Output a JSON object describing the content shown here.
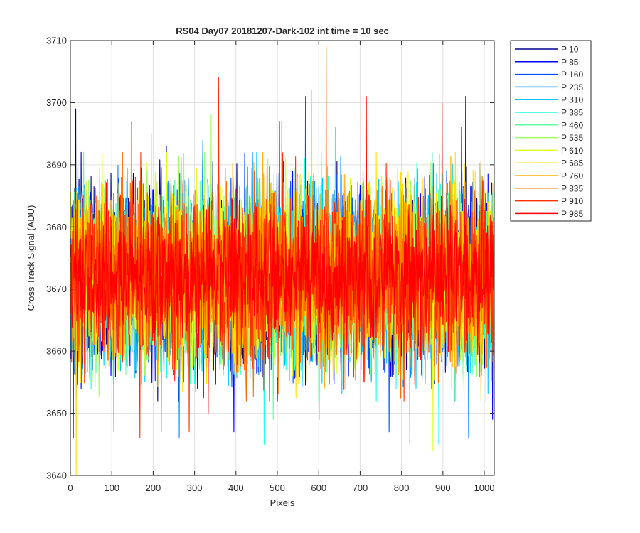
{
  "chart_data": {
    "type": "line",
    "title": "RS04 Day07 20181207-Dark-102 int time = 10 sec",
    "xlabel": "Pixels",
    "ylabel": "Cross Track Signal (ADU)",
    "xlim": [
      0,
      1024
    ],
    "ylim": [
      3640,
      3710
    ],
    "x_ticks": [
      "0",
      "100",
      "200",
      "300",
      "400",
      "500",
      "600",
      "700",
      "800",
      "900",
      "1000"
    ],
    "y_ticks": [
      "3640",
      "3650",
      "3660",
      "3670",
      "3680",
      "3690",
      "3700",
      "3710"
    ],
    "grid": true,
    "legend_position": "outside right, top",
    "x": "pixel index 1–1024 (one sample per pixel)",
    "series": [
      {
        "name": "P 10",
        "color": "#00008F",
        "seed": 10,
        "mean": 3672.0,
        "sd": 7.2,
        "peaks": [
          [
            13,
            3699
          ],
          [
            232,
            3693
          ],
          [
            955,
            3701
          ]
        ],
        "troughs": [
          [
            7,
            3646
          ]
        ]
      },
      {
        "name": "P 85",
        "color": "#0000FF",
        "seed": 85,
        "mean": 3672.0,
        "sd": 7.0,
        "peaks": [
          [
            505,
            3697
          ],
          [
            945,
            3696
          ]
        ],
        "troughs": [
          [
            395,
            3647
          ],
          [
            1020,
            3649
          ]
        ]
      },
      {
        "name": "P 160",
        "color": "#0050FF",
        "seed": 160,
        "mean": 3672.0,
        "sd": 7.0,
        "peaks": [
          [
            568,
            3701
          ]
        ],
        "troughs": [
          [
            770,
            3647
          ]
        ]
      },
      {
        "name": "P 235",
        "color": "#0090FF",
        "seed": 235,
        "mean": 3672.0,
        "sd": 7.0,
        "peaks": [
          [
            320,
            3694
          ]
        ],
        "troughs": [
          [
            263,
            3646
          ],
          [
            962,
            3646
          ]
        ]
      },
      {
        "name": "P 310",
        "color": "#00C8FF",
        "seed": 310,
        "mean": 3672.0,
        "sd": 7.0,
        "peaks": [
          [
            450,
            3692
          ]
        ],
        "troughs": [
          [
            820,
            3645
          ]
        ]
      },
      {
        "name": "P 385",
        "color": "#20FFE0",
        "seed": 385,
        "mean": 3672.0,
        "sd": 7.0,
        "peaks": [
          [
            640,
            3696
          ]
        ],
        "troughs": [
          [
            468,
            3645
          ],
          [
            890,
            3645
          ]
        ]
      },
      {
        "name": "P 460",
        "color": "#60FFA0",
        "seed": 460,
        "mean": 3672.0,
        "sd": 7.0,
        "peaks": [
          [
            510,
            3697
          ]
        ],
        "troughs": [
          [
            490,
            3649
          ]
        ]
      },
      {
        "name": "P 535",
        "color": "#A0FF60",
        "seed": 535,
        "mean": 3672.0,
        "sd": 7.0,
        "peaks": [
          [
            340,
            3698
          ]
        ],
        "troughs": [
          [
            602,
            3649
          ]
        ]
      },
      {
        "name": "P 610",
        "color": "#E0FF20",
        "seed": 610,
        "mean": 3672.0,
        "sd": 7.0,
        "peaks": [
          [
            196,
            3695
          ]
        ],
        "troughs": [
          [
            876,
            3644
          ]
        ]
      },
      {
        "name": "P 685",
        "color": "#FFE000",
        "seed": 685,
        "mean": 3672.0,
        "sd": 7.0,
        "peaks": [
          [
            583,
            3702
          ]
        ],
        "troughs": [
          [
            14,
            3640
          ]
        ]
      },
      {
        "name": "P 760",
        "color": "#FFB000",
        "seed": 760,
        "mean": 3672.0,
        "sd": 7.0,
        "peaks": [
          [
            147,
            3697
          ]
        ],
        "troughs": [
          [
            220,
            3647
          ]
        ]
      },
      {
        "name": "P 835",
        "color": "#FF7000",
        "seed": 835,
        "mean": 3672.0,
        "sd": 7.0,
        "peaks": [
          [
            618,
            3709
          ]
        ],
        "troughs": [
          [
            105,
            3647
          ]
        ]
      },
      {
        "name": "P 910",
        "color": "#FF3000",
        "seed": 910,
        "mean": 3672.0,
        "sd": 7.0,
        "peaks": [
          [
            358,
            3704
          ]
        ],
        "troughs": [
          [
            287,
            3647
          ],
          [
            168,
            3646
          ]
        ]
      },
      {
        "name": "P 985",
        "color": "#FF0000",
        "seed": 985,
        "mean": 3672.0,
        "sd": 5.2,
        "peaks": [
          [
            715,
            3701
          ],
          [
            898,
            3700
          ]
        ],
        "troughs": [
          [
            333,
            3650
          ]
        ]
      }
    ]
  }
}
